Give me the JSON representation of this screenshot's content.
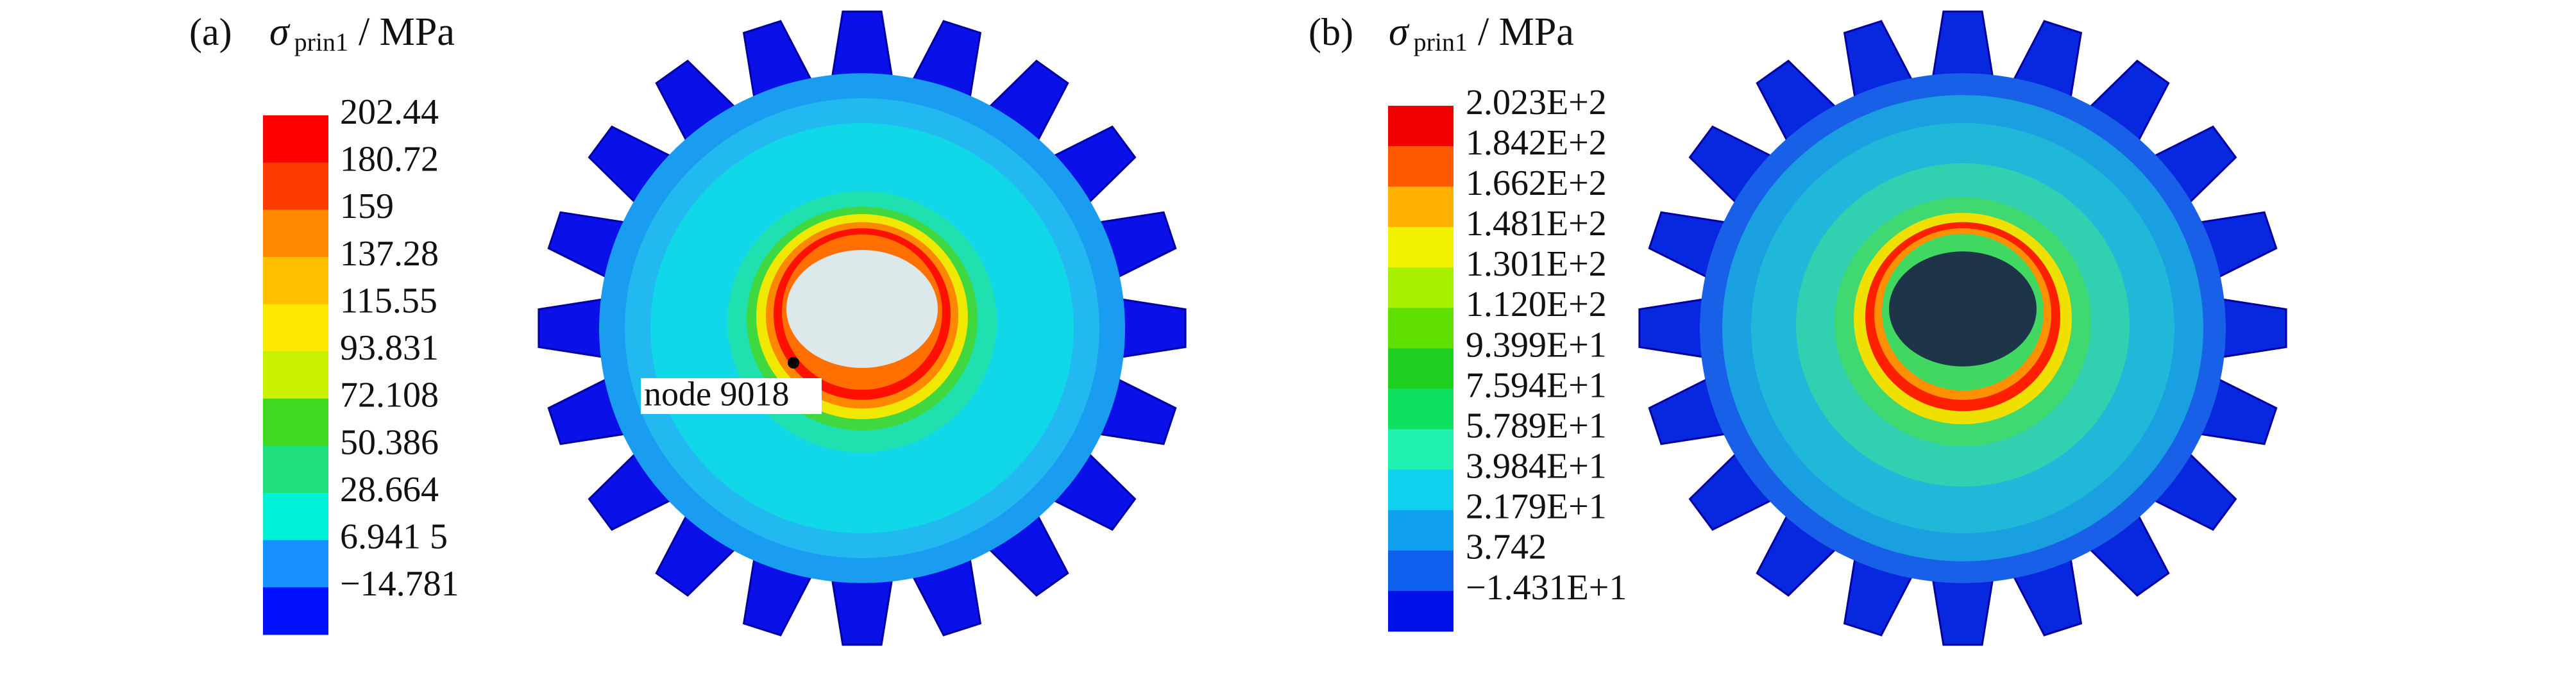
{
  "panels": [
    {
      "label": "(a)",
      "title": {
        "symbol": "σ",
        "subscript": "prin1",
        "unit": "/ MPa"
      },
      "legend": [
        "202.44",
        "180.72",
        "159",
        "137.28",
        "115.55",
        "93.831",
        "72.108",
        "50.386",
        "28.664",
        "6.941 5",
        "−14.781"
      ],
      "annotation": "node 9018"
    },
    {
      "label": "(b)",
      "title": {
        "symbol": "σ",
        "subscript": "prin1",
        "unit": "/ MPa"
      },
      "legend": [
        "2.023E+2",
        "1.842E+2",
        "1.662E+2",
        "1.481E+2",
        "1.301E+2",
        "1.120E+2",
        "9.399E+1",
        "7.594E+1",
        "5.789E+1",
        "3.984E+1",
        "2.179E+1",
        "3.742",
        "−1.431E+1"
      ]
    }
  ]
}
